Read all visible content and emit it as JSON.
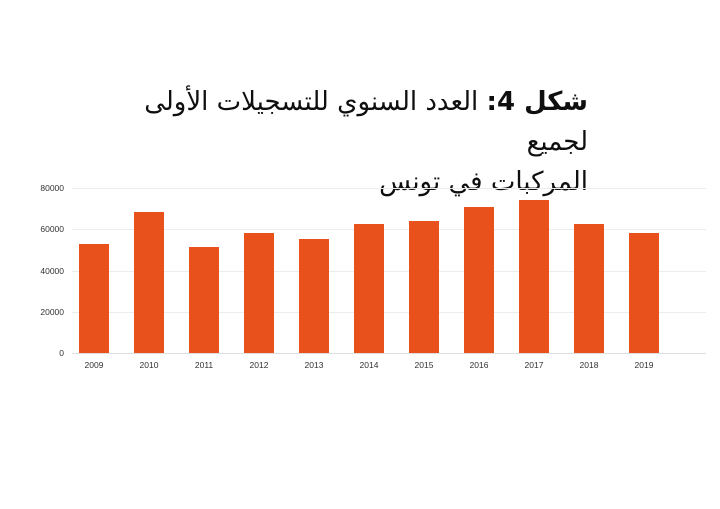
{
  "title": {
    "figure_label": "شكل 4:",
    "line1_rest": " العدد السنوي للتسجيلات الأولى لجميع",
    "line2": "المركبات في تونس",
    "full": "شكل 4: العدد السنوي للتسجيلات الأولى لجميع المركبات في تونس"
  },
  "chart_data": {
    "type": "bar",
    "title": "شكل 4: العدد السنوي للتسجيلات الأولى لجميع المركبات في تونس",
    "categories": [
      "2009",
      "2010",
      "2011",
      "2012",
      "2013",
      "2014",
      "2015",
      "2016",
      "2017",
      "2018",
      "2019"
    ],
    "values": [
      53000,
      68500,
      51500,
      58000,
      55500,
      62500,
      64000,
      71000,
      74000,
      62500,
      58000
    ],
    "xlabel": "",
    "ylabel": "",
    "ylim": [
      0,
      80000
    ],
    "ytick_interval": 20000,
    "yticks": [
      "0",
      "20000",
      "40000",
      "60000",
      "80000"
    ],
    "bar_color": "#E8511B",
    "grid": true,
    "legend_position": "none",
    "background": "#ffffff"
  }
}
